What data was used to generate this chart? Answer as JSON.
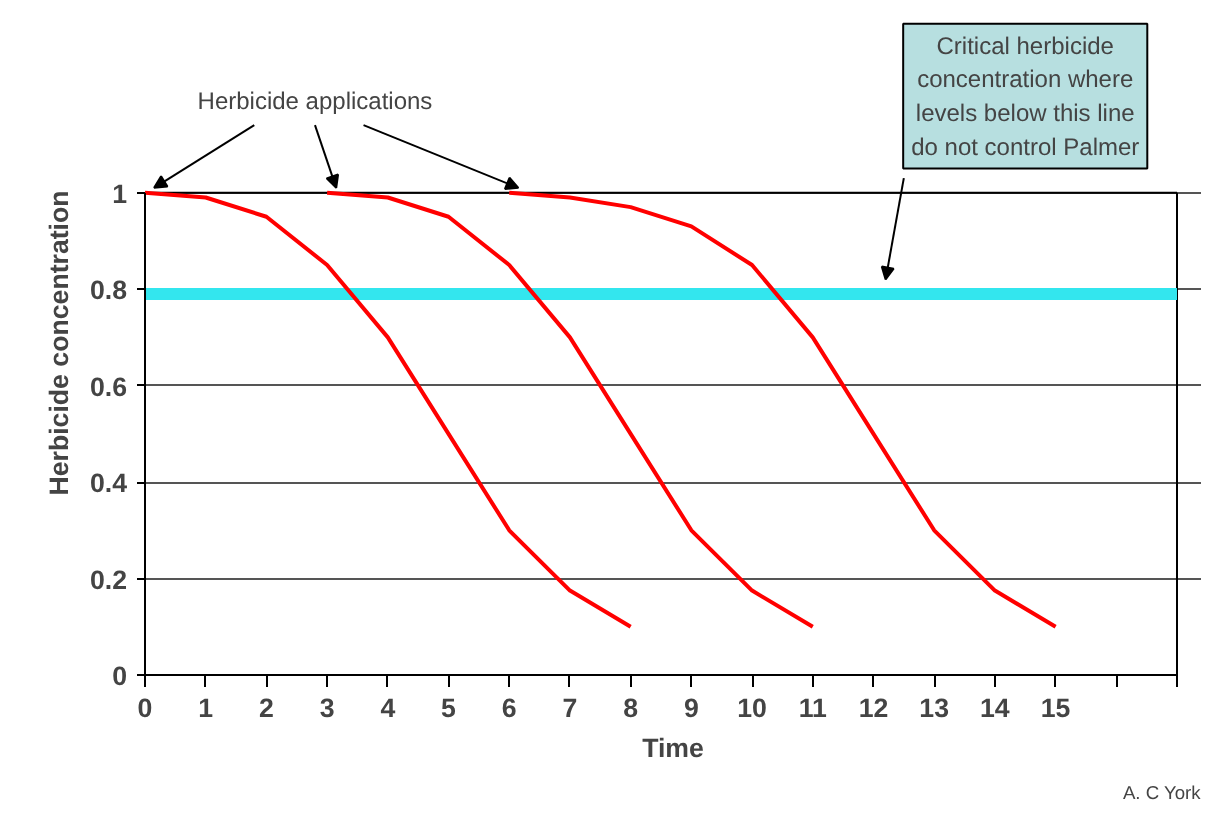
{
  "chart_data": {
    "type": "line",
    "xlabel": "Time",
    "ylabel": "Herbicide concentration",
    "series": [
      {
        "color": "#ff0000",
        "x": [
          0,
          1,
          2,
          3,
          4,
          5,
          6,
          7,
          8
        ],
        "values": [
          1,
          0.99,
          0.95,
          0.85,
          0.7,
          0.5,
          0.3,
          0.175,
          0.1
        ]
      },
      {
        "color": "#ff0000",
        "x": [
          3,
          4,
          5,
          6,
          7,
          8,
          9,
          10,
          11
        ],
        "values": [
          1,
          0.99,
          0.95,
          0.85,
          0.7,
          0.5,
          0.3,
          0.175,
          0.1
        ]
      },
      {
        "color": "#ff0000",
        "x": [
          6,
          7,
          8,
          9,
          10,
          11,
          12,
          13,
          14,
          15
        ],
        "values": [
          1,
          0.99,
          0.97,
          0.93,
          0.85,
          0.7,
          0.5,
          0.3,
          0.175,
          0.1
        ]
      }
    ],
    "xlim": [
      0,
      17
    ],
    "xticks": [
      0,
      1,
      2,
      3,
      4,
      5,
      6,
      7,
      8,
      9,
      10,
      11,
      12,
      13,
      14,
      15,
      {
        "value": 16,
        "label": null
      },
      {
        "value": 17,
        "label": null
      }
    ],
    "ylim": [
      0,
      1
    ],
    "yticks": [
      0,
      0.2,
      0.4,
      0.6,
      0.8,
      1
    ],
    "grid": "y",
    "line_style": "solid",
    "ref_lines": [
      {
        "axis": "y",
        "value": 0.79,
        "color": "#33e6ee",
        "label": "Critical herbicide concentration where levels below this line do not control Palmer"
      }
    ],
    "annotations": [
      "Herbicide applications",
      "A. C York"
    ]
  }
}
